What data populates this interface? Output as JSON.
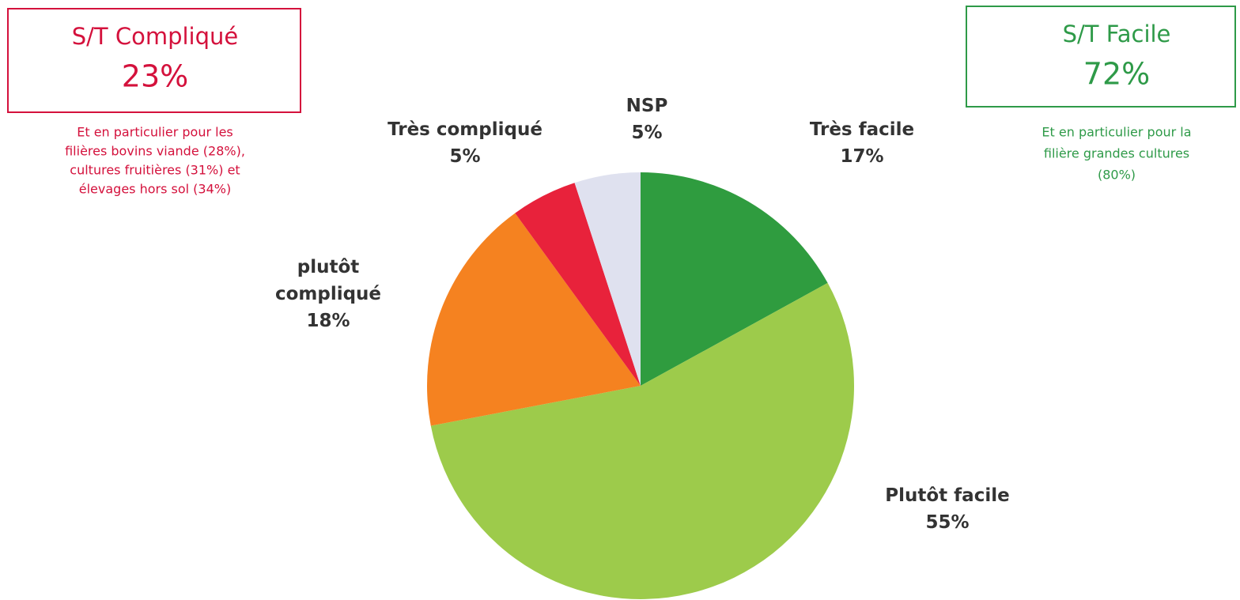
{
  "chart_data": {
    "type": "pie",
    "categories": [
      "Très facile",
      "Plutôt facile",
      "plutôt compliqué",
      "Très compliqué",
      "NSP"
    ],
    "values": [
      17,
      55,
      18,
      5,
      5
    ],
    "value_labels": [
      "17%",
      "55%",
      "18%",
      "5%",
      "5%"
    ],
    "colors": [
      "#2f9c3f",
      "#9dcb4b",
      "#f58220",
      "#e8223b",
      "#dfe1ef"
    ]
  },
  "summary_boxes": [
    {
      "title": "S/T Compliqué",
      "value_label": "23%",
      "color": "#d4113c",
      "note": [
        "Et en particulier pour les",
        "filières bovins viande (28%),",
        "cultures fruitières (31%) et",
        "élevages hors sol  (34%)"
      ]
    },
    {
      "title": "S/T Facile",
      "value_label": "72%",
      "color": "#2e9a48",
      "note": [
        "Et en particulier pour la",
        "filière grandes cultures",
        "(80%)"
      ]
    }
  ]
}
